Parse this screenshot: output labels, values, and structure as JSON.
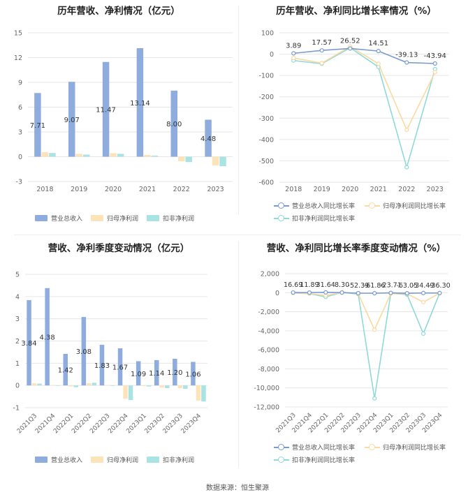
{
  "colors": {
    "revenue": "#8eadde",
    "net_profit": "#fde4b8",
    "deducted_profit": "#a9e3e3",
    "revenue_line": "#7a9bd0",
    "net_profit_line": "#fbd9a1",
    "deducted_profit_line": "#8fd9d9",
    "grid": "#e6e6e6",
    "axis_text": "#666666",
    "label_text": "#333333"
  },
  "legend_labels": {
    "revenue": "营业总收入",
    "net_profit": "归母净利润",
    "deducted_profit": "扣非净利润",
    "revenue_yoy": "营业总收入同比增长率",
    "net_profit_yoy": "归母净利润同比增长率",
    "deducted_profit_yoy": "扣非净利润同比增长率"
  },
  "source": "数据来源：恒生聚源",
  "chart_data": [
    {
      "id": "annual_amounts",
      "type": "bar",
      "title": "历年营收、净利情况（亿元）",
      "categories": [
        "2018",
        "2019",
        "2020",
        "2021",
        "2022",
        "2023"
      ],
      "ylim": [
        -3,
        15
      ],
      "yticks": [
        -3,
        0,
        3,
        6,
        9,
        12,
        15
      ],
      "series": [
        {
          "name": "营业总收入",
          "values": [
            7.71,
            9.07,
            11.47,
            13.14,
            8.0,
            4.48
          ],
          "labels": [
            "7.71",
            "9.07",
            "11.47",
            "13.14",
            "8.00",
            "4.48"
          ]
        },
        {
          "name": "归母净利润",
          "values": [
            0.55,
            0.35,
            0.42,
            0.22,
            -0.55,
            -1.05
          ]
        },
        {
          "name": "扣非净利润",
          "values": [
            0.45,
            0.25,
            0.35,
            0.12,
            -0.65,
            -1.15
          ]
        }
      ],
      "grid": true,
      "legend": "bottom"
    },
    {
      "id": "annual_growth",
      "type": "line",
      "title": "历年营收、净利同比增长率情况（%）",
      "categories": [
        "2018",
        "2019",
        "2020",
        "2021",
        "2022",
        "2023"
      ],
      "ylim": [
        -600,
        100
      ],
      "yticks": [
        -600,
        -500,
        -400,
        -300,
        -200,
        -100,
        0,
        100
      ],
      "series": [
        {
          "name": "营业总收入同比增长率",
          "values": [
            3.89,
            17.57,
            26.52,
            14.51,
            -39.13,
            -43.94
          ],
          "labels": [
            "3.89",
            "17.57",
            "26.52",
            "14.51",
            "-39.13",
            "-43.94"
          ]
        },
        {
          "name": "归母净利润同比增长率",
          "values": [
            -18,
            -42,
            36,
            -45,
            -355,
            -85
          ]
        },
        {
          "name": "扣非净利润同比增长率",
          "values": [
            -30,
            -45,
            30,
            -60,
            -530,
            -70
          ]
        }
      ],
      "grid": true,
      "legend": "bottom"
    },
    {
      "id": "quarterly_amounts",
      "type": "bar",
      "title": "营收、净利季度变动情况（亿元）",
      "categories": [
        "2021Q3",
        "2021Q4",
        "2022Q1",
        "2022Q2",
        "2022Q3",
        "2022Q4",
        "2023Q1",
        "2023Q2",
        "2023Q3",
        "2023Q4"
      ],
      "ylim": [
        -1,
        5
      ],
      "yticks": [
        -1,
        0,
        1,
        2,
        3,
        4,
        5
      ],
      "series": [
        {
          "name": "营业总收入",
          "values": [
            3.84,
            4.38,
            1.42,
            3.08,
            1.83,
            1.67,
            1.09,
            1.14,
            1.2,
            1.06
          ],
          "labels": [
            "3.84",
            "4.38",
            "1.42",
            "3.08",
            "1.83",
            "1.67",
            "1.09",
            "1.14",
            "1.20",
            "1.06"
          ]
        },
        {
          "name": "归母净利润",
          "values": [
            0.1,
            0.02,
            -0.05,
            0.1,
            0.01,
            -0.6,
            -0.03,
            -0.1,
            -0.12,
            -0.68
          ]
        },
        {
          "name": "扣非净利润",
          "values": [
            0.08,
            -0.02,
            -0.08,
            0.12,
            -0.02,
            -0.66,
            -0.05,
            -0.12,
            -0.15,
            -0.72
          ]
        }
      ],
      "grid": true,
      "legend": "bottom"
    },
    {
      "id": "quarterly_growth",
      "type": "line",
      "title": "营收、净利同比增长率季度变动情况（%）",
      "categories": [
        "2021Q3",
        "2021Q4",
        "2022Q1",
        "2022Q2",
        "2022Q3",
        "2022Q4",
        "2023Q1",
        "2023Q2",
        "2023Q3",
        "2023Q4"
      ],
      "ylim": [
        -12000,
        2000
      ],
      "yticks": [
        -12000,
        -10000,
        -8000,
        -6000,
        -4000,
        -2000,
        0,
        2000
      ],
      "ytick_labels": [
        "-12,000",
        "-10,000",
        "-8,000",
        "-6,000",
        "-4,000",
        "-2,000",
        "0",
        "2,000"
      ],
      "series": [
        {
          "name": "营业总收入同比增长率",
          "values": [
            16.69,
            11.89,
            31.64,
            8.3,
            -52.39,
            -61.86,
            -23.71,
            -63.05,
            -34.49,
            -36.3
          ],
          "labels": [
            "16.69",
            "11.89",
            "31.64",
            "8.30",
            "-52.39",
            "-61.86",
            "-23.71",
            "-63.05",
            "-34.49",
            "-36.30"
          ]
        },
        {
          "name": "归母净利润同比增长率",
          "values": [
            -20,
            -80,
            -300,
            50,
            -100,
            -3900,
            -100,
            -100,
            -1000,
            -50
          ]
        },
        {
          "name": "扣非净利润同比增长率",
          "values": [
            -30,
            -100,
            -450,
            40,
            -150,
            -11100,
            -80,
            -200,
            -4300,
            -60
          ]
        }
      ],
      "grid": true,
      "legend": "bottom"
    }
  ]
}
